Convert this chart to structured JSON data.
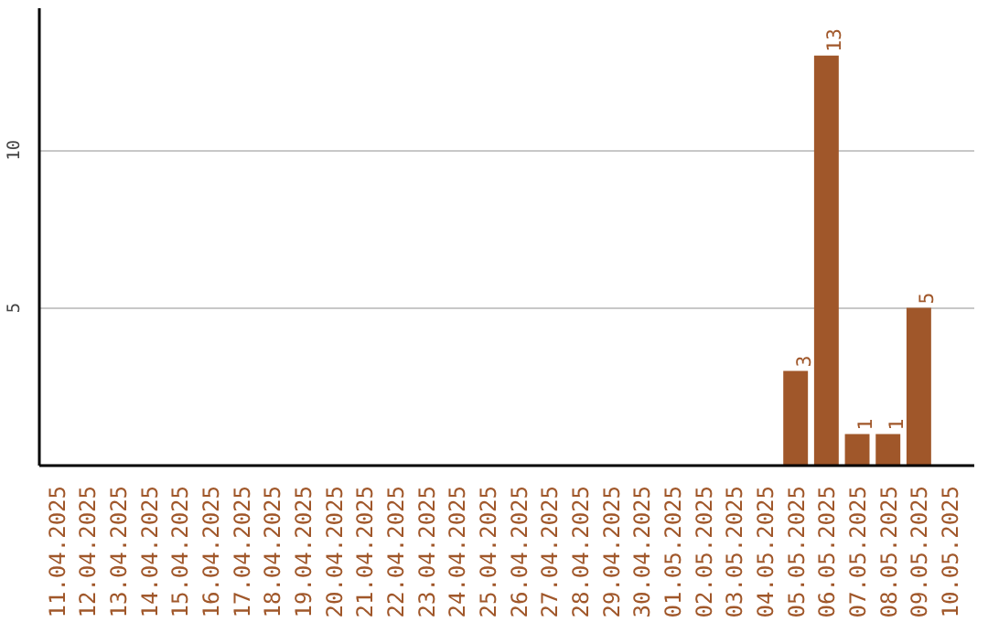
{
  "chart_data": {
    "type": "bar",
    "categories": [
      "11.04.2025",
      "12.04.2025",
      "13.04.2025",
      "14.04.2025",
      "15.04.2025",
      "16.04.2025",
      "17.04.2025",
      "18.04.2025",
      "19.04.2025",
      "20.04.2025",
      "21.04.2025",
      "22.04.2025",
      "23.04.2025",
      "24.04.2025",
      "25.04.2025",
      "26.04.2025",
      "27.04.2025",
      "28.04.2025",
      "29.04.2025",
      "30.04.2025",
      "01.05.2025",
      "02.05.2025",
      "03.05.2025",
      "04.05.2025",
      "05.05.2025",
      "06.05.2025",
      "07.05.2025",
      "08.05.2025",
      "09.05.2025",
      "10.05.2025"
    ],
    "values": [
      0,
      0,
      0,
      0,
      0,
      0,
      0,
      0,
      0,
      0,
      0,
      0,
      0,
      0,
      0,
      0,
      0,
      0,
      0,
      0,
      0,
      0,
      0,
      0,
      3,
      13,
      1,
      1,
      5,
      0
    ],
    "value_labels": [
      null,
      null,
      null,
      null,
      null,
      null,
      null,
      null,
      null,
      null,
      null,
      null,
      null,
      null,
      null,
      null,
      null,
      null,
      null,
      null,
      null,
      null,
      null,
      null,
      "3",
      "13",
      "1",
      "1",
      "5",
      null
    ],
    "color": "#a0572a",
    "ylim": [
      0,
      14.5
    ],
    "yticks": [
      5,
      10
    ],
    "grid": "y"
  }
}
